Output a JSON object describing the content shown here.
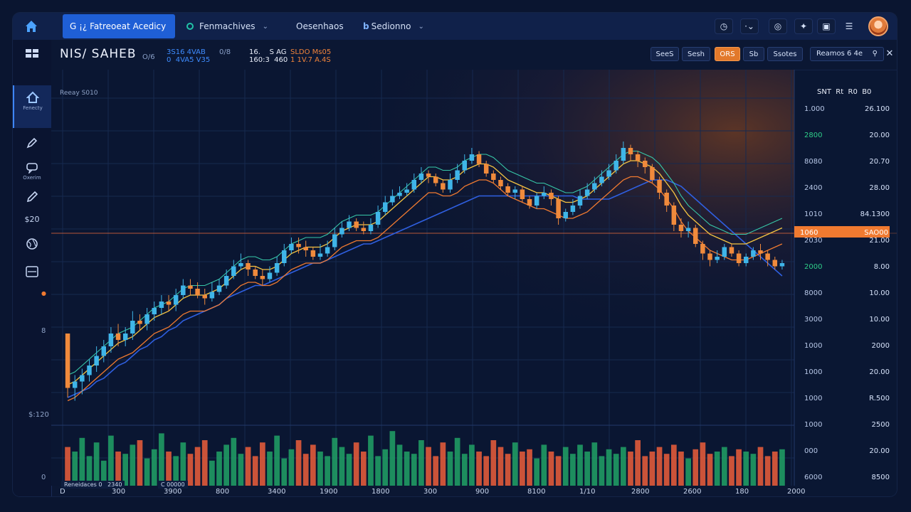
{
  "colors": {
    "background": "#0b1733",
    "up": "#3fb5e8",
    "down": "#f08a3c",
    "vol_up": "#1f9a63",
    "vol_down": "#e05a3a",
    "accent": "#1f5fd6",
    "highlight": "#f07a30"
  },
  "topnav": {
    "tabs": [
      {
        "label": "G ¡¿ Fatreoeat Acedicy",
        "icon": "home-tab-icon"
      },
      {
        "label": "Fenmachives",
        "icon": "circle-icon"
      },
      {
        "label": "Oesenhaos",
        "icon": ""
      },
      {
        "label": "Sedionno",
        "icon": "b"
      }
    ],
    "icons": [
      "clock-icon",
      "more-icon",
      "target-icon",
      "wrench-icon",
      "window-icon",
      "menu-icon"
    ]
  },
  "sidebar": {
    "items": [
      {
        "icon": "home-icon",
        "label": "Fenecty"
      },
      {
        "icon": "pen-icon",
        "label": ""
      },
      {
        "icon": "chat-icon",
        "label": "Oxerim"
      },
      {
        "icon": "pencil-icon",
        "label": ""
      },
      {
        "icon": "dollar-icon",
        "label": "$20"
      },
      {
        "icon": "globe-icon",
        "label": ""
      },
      {
        "icon": "window-icon",
        "label": ""
      }
    ],
    "notes": [
      "8",
      "$:120",
      "0"
    ]
  },
  "header": {
    "symbol": "NIS/ SAHEB",
    "symbol_sub": "O/6",
    "stats": [
      {
        "top": "3S16 4VAB",
        "bottom": "0  4VA5 V35",
        "color": "#3e8cff"
      },
      {
        "top": "0/8",
        "bottom": "",
        "color": "#8aa0c8"
      },
      {
        "top": "16.    S AG",
        "bottom": "160:3  460",
        "color": "#e9eef9"
      },
      {
        "top": "SLDO Ms05",
        "bottom": "1 1V.7 A.4S",
        "color": "#f0833a"
      }
    ],
    "timeframes": [
      "SeeS",
      "Sesh",
      "ORS",
      "Sb",
      "Ssotes"
    ],
    "active_timeframe": "ORS",
    "search_text": "Reamos 6 4e",
    "search_icon": "search-icon",
    "close_icon": "close-icon"
  },
  "chart_data": {
    "type": "candlestick",
    "title": "Reeay S010",
    "legend": "SNT  Rt  R0  B0",
    "price_axis_left": [
      "1.000",
      "2800",
      "8080",
      "2400",
      "1010",
      "2030",
      "2000",
      "8000",
      "3000",
      "1000",
      "1000",
      "1000",
      "1000",
      "000",
      "6000"
    ],
    "price_axis_right": [
      "26.100",
      "20.00",
      "20.70",
      "28.00",
      "84.1300",
      "21.00",
      "8.00",
      "10.00",
      "10.00",
      "2000",
      "20.00",
      "R.500",
      "2500",
      "20.00",
      "8500"
    ],
    "highlight_label_left": "1060",
    "highlight_label_right": "SAO00",
    "x_labels": [
      "D",
      "300",
      "3900",
      "800",
      "3400",
      "1900",
      "1800",
      "300",
      "900",
      "8100",
      "1/10",
      "2800",
      "2600",
      "180",
      "2000"
    ],
    "volume_note_left": "Reneidaces 0   2340",
    "volume_note_right": "C 00000",
    "candles": [
      [
        78,
        95,
        88,
        98
      ],
      [
        95,
        93,
        99,
        91
      ],
      [
        93,
        91,
        97,
        89
      ],
      [
        91,
        88,
        93,
        86
      ],
      [
        88,
        85,
        90,
        82
      ],
      [
        85,
        82,
        87,
        80
      ],
      [
        82,
        78,
        84,
        76
      ],
      [
        78,
        80,
        82,
        75
      ],
      [
        80,
        78,
        82,
        76
      ],
      [
        78,
        74,
        80,
        71
      ],
      [
        74,
        75,
        77,
        72
      ],
      [
        75,
        72,
        77,
        70
      ],
      [
        72,
        70,
        74,
        68
      ],
      [
        70,
        68,
        72,
        66
      ],
      [
        68,
        69,
        71,
        66
      ],
      [
        69,
        66,
        71,
        64
      ],
      [
        66,
        63,
        67,
        61
      ],
      [
        63,
        64,
        66,
        61
      ],
      [
        64,
        66,
        67,
        62
      ],
      [
        66,
        67,
        69,
        64
      ],
      [
        67,
        65,
        68,
        62
      ],
      [
        65,
        63,
        66,
        61
      ],
      [
        63,
        60,
        64,
        58
      ],
      [
        60,
        57,
        61,
        55
      ],
      [
        57,
        56,
        58,
        53
      ],
      [
        56,
        58,
        60,
        55
      ],
      [
        58,
        60,
        61,
        57
      ],
      [
        60,
        61,
        63,
        58
      ],
      [
        61,
        59,
        62,
        57
      ],
      [
        59,
        56,
        60,
        54
      ],
      [
        56,
        52,
        57,
        50
      ],
      [
        52,
        50,
        53,
        48
      ],
      [
        50,
        51,
        53,
        48
      ],
      [
        51,
        52,
        54,
        49
      ],
      [
        52,
        54,
        55,
        51
      ],
      [
        54,
        53,
        55,
        50
      ],
      [
        53,
        51,
        54,
        49
      ],
      [
        51,
        47,
        52,
        45
      ],
      [
        47,
        45,
        48,
        43
      ],
      [
        45,
        43,
        46,
        41
      ],
      [
        43,
        45,
        46,
        42
      ],
      [
        45,
        46,
        47,
        43
      ],
      [
        46,
        44,
        47,
        42
      ],
      [
        44,
        40,
        45,
        38
      ],
      [
        40,
        37,
        41,
        35
      ],
      [
        37,
        35,
        38,
        33
      ],
      [
        35,
        34,
        36,
        32
      ],
      [
        34,
        33,
        35,
        31
      ],
      [
        33,
        30,
        34,
        28
      ],
      [
        30,
        28,
        31,
        26
      ],
      [
        28,
        29,
        31,
        27
      ],
      [
        29,
        31,
        32,
        28
      ],
      [
        31,
        33,
        34,
        30
      ],
      [
        33,
        30,
        34,
        28
      ],
      [
        30,
        27,
        31,
        25
      ],
      [
        27,
        24,
        28,
        22
      ],
      [
        24,
        22,
        25,
        20
      ],
      [
        22,
        25,
        26,
        21
      ],
      [
        25,
        28,
        29,
        24
      ],
      [
        28,
        30,
        31,
        27
      ],
      [
        30,
        32,
        33,
        29
      ],
      [
        32,
        34,
        35,
        31
      ],
      [
        34,
        33,
        36,
        32
      ],
      [
        33,
        36,
        37,
        32
      ],
      [
        36,
        38,
        39,
        35
      ],
      [
        38,
        35,
        39,
        34
      ],
      [
        35,
        34,
        36,
        32
      ],
      [
        34,
        36,
        38,
        33
      ],
      [
        36,
        42,
        44,
        35
      ],
      [
        42,
        40,
        43,
        39
      ],
      [
        40,
        38,
        41,
        36
      ],
      [
        38,
        35,
        39,
        33
      ],
      [
        35,
        33,
        36,
        31
      ],
      [
        33,
        31,
        34,
        29
      ],
      [
        31,
        29,
        32,
        27
      ],
      [
        29,
        27,
        30,
        25
      ],
      [
        27,
        24,
        28,
        22
      ],
      [
        24,
        20,
        25,
        18
      ],
      [
        20,
        22,
        24,
        19
      ],
      [
        22,
        24,
        26,
        21
      ],
      [
        24,
        26,
        28,
        23
      ],
      [
        26,
        30,
        31,
        25
      ],
      [
        30,
        34,
        36,
        29
      ],
      [
        34,
        38,
        40,
        33
      ],
      [
        38,
        44,
        46,
        37
      ],
      [
        44,
        46,
        48,
        42
      ],
      [
        46,
        45,
        48,
        43
      ],
      [
        45,
        50,
        51,
        44
      ],
      [
        50,
        53,
        55,
        49
      ],
      [
        53,
        55,
        57,
        52
      ],
      [
        55,
        54,
        56,
        52
      ],
      [
        54,
        51,
        55,
        50
      ],
      [
        51,
        53,
        54,
        50
      ],
      [
        53,
        56,
        57,
        52
      ],
      [
        56,
        54,
        57,
        53
      ],
      [
        54,
        52,
        55,
        51
      ],
      [
        52,
        53,
        55,
        50
      ],
      [
        53,
        55,
        57,
        52
      ],
      [
        55,
        57,
        58,
        54
      ],
      [
        57,
        56,
        58,
        55
      ]
    ],
    "volume": [
      34,
      30,
      42,
      26,
      38,
      22,
      44,
      30,
      28,
      36,
      40,
      24,
      32,
      46,
      30,
      26,
      38,
      28,
      34,
      40,
      22,
      30,
      36,
      42,
      28,
      34,
      26,
      38,
      30,
      44,
      24,
      32,
      40,
      28,
      36,
      30,
      26,
      42,
      34,
      28,
      38,
      30,
      44,
      26,
      32,
      48,
      36,
      30,
      28,
      40,
      34,
      26,
      38,
      30,
      42,
      28,
      36,
      30,
      26,
      40,
      34,
      28,
      38,
      30,
      32,
      24,
      36,
      30,
      26,
      34,
      28,
      36,
      30,
      38,
      26,
      32,
      28,
      34,
      30,
      40,
      26,
      30,
      34,
      28,
      36,
      30,
      24,
      32,
      38,
      28,
      30,
      34,
      26,
      32,
      30,
      28,
      34,
      26,
      30,
      32
    ],
    "ma_fast": [
      94,
      93,
      91,
      89,
      87,
      85,
      83,
      81,
      80,
      79,
      77,
      75,
      73,
      72,
      71,
      69,
      67,
      66,
      66,
      66,
      65,
      64,
      62,
      60,
      58,
      57,
      57,
      58,
      58,
      57,
      55,
      53,
      52,
      51,
      51,
      51,
      50,
      48,
      46,
      45,
      44,
      44,
      44,
      43,
      41,
      39,
      37,
      35,
      33,
      31,
      29,
      29,
      30,
      30,
      29,
      27,
      26,
      25,
      25,
      26,
      28,
      30,
      31,
      32,
      33,
      34,
      34,
      35,
      36,
      37,
      37,
      36,
      35,
      33,
      31,
      29,
      27,
      25,
      24,
      24,
      25,
      26,
      28,
      31,
      34,
      38,
      41,
      43,
      45,
      47,
      48,
      49,
      50,
      50,
      50,
      49,
      48,
      47,
      46,
      45
    ],
    "ma_slow": [
      98,
      97,
      96,
      95,
      93,
      92,
      90,
      88,
      87,
      85,
      83,
      82,
      80,
      79,
      77,
      76,
      74,
      73,
      72,
      71,
      70,
      69,
      67,
      66,
      65,
      64,
      63,
      63,
      62,
      61,
      60,
      59,
      58,
      57,
      56,
      56,
      55,
      54,
      53,
      52,
      51,
      50,
      50,
      49,
      48,
      47,
      46,
      45,
      44,
      43,
      42,
      41,
      40,
      39,
      38,
      37,
      36,
      35,
      35,
      35,
      35,
      35,
      35,
      35,
      35,
      35,
      35,
      35,
      35,
      35,
      35,
      36,
      36,
      36,
      36,
      36,
      35,
      34,
      33,
      32,
      31,
      30,
      30,
      30,
      31,
      32,
      34,
      36,
      38,
      40,
      42,
      44,
      46,
      48,
      50,
      52,
      54,
      56,
      58,
      60
    ]
  }
}
